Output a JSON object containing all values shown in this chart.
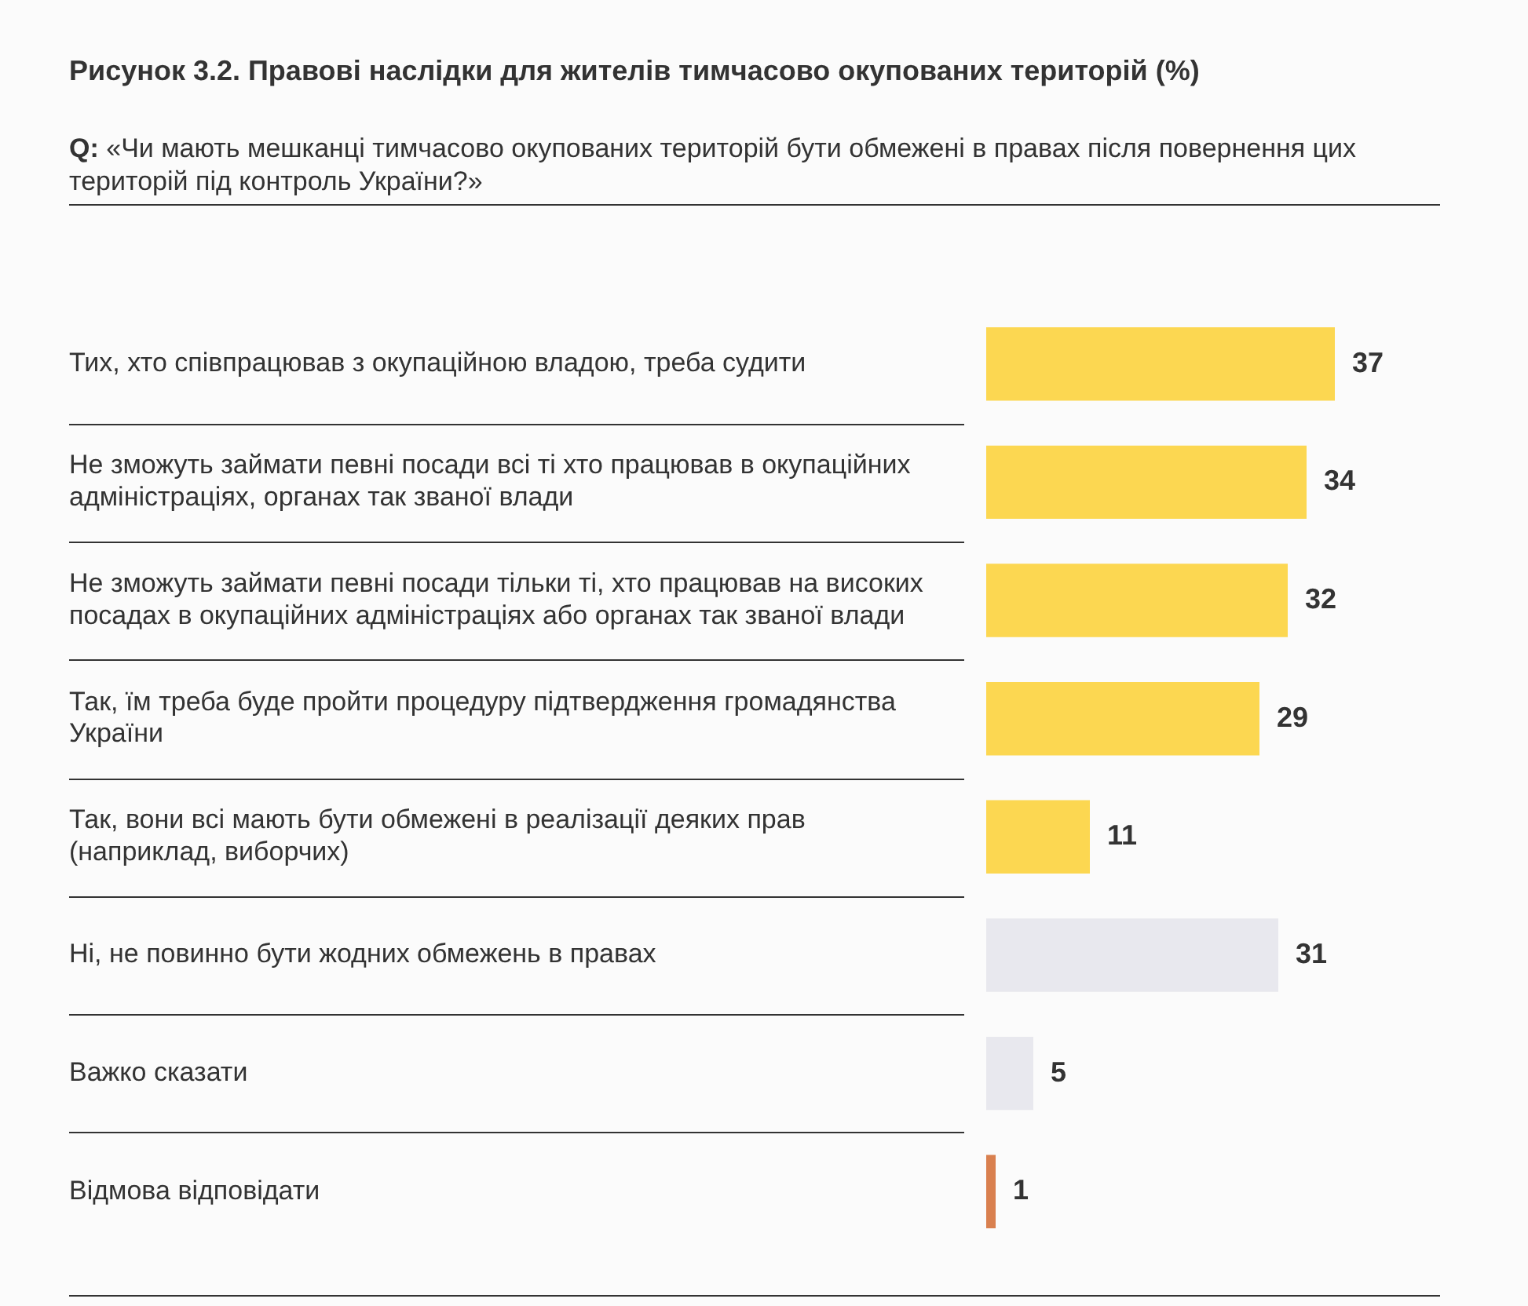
{
  "chart_data": {
    "type": "bar",
    "orientation": "horizontal",
    "title": "Рисунок 3.2. Правові наслідки для жителів тимчасово окупованих територій (%)",
    "subtitle": "Q: «Чи мають мешканці тимчасово окупованих територій бути обмежені в правах після повернення цих територій під контроль України?»",
    "categories": [
      "Тих, хто співпрацював з окупаційною владою, треба судити",
      "Не зможуть займати певні посади всі ті хто працював в окупаційних адміністраціях, органах так званої влади",
      "Не зможуть займати певні посади тільки ті, хто працював на високих посадах в окупаційних адміністраціях або органах так званої влади",
      "Так, їм треба буде пройти процедуру підтвердження громадянства України",
      "Так, вони всі мають бути обмежені в реалізації деяких прав (наприклад, виборчих)",
      "Ні, не повинно бути жодних обмежень в правах",
      "Важко сказати",
      "Відмова відповідати"
    ],
    "values": [
      37,
      34,
      32,
      29,
      11,
      31,
      5,
      1
    ],
    "colors": [
      "#fcd751",
      "#fcd751",
      "#fcd751",
      "#fcd751",
      "#fcd751",
      "#e8e8ee",
      "#e8e8ee",
      "#d9804f"
    ],
    "data_labels": true,
    "legend": false
  }
}
